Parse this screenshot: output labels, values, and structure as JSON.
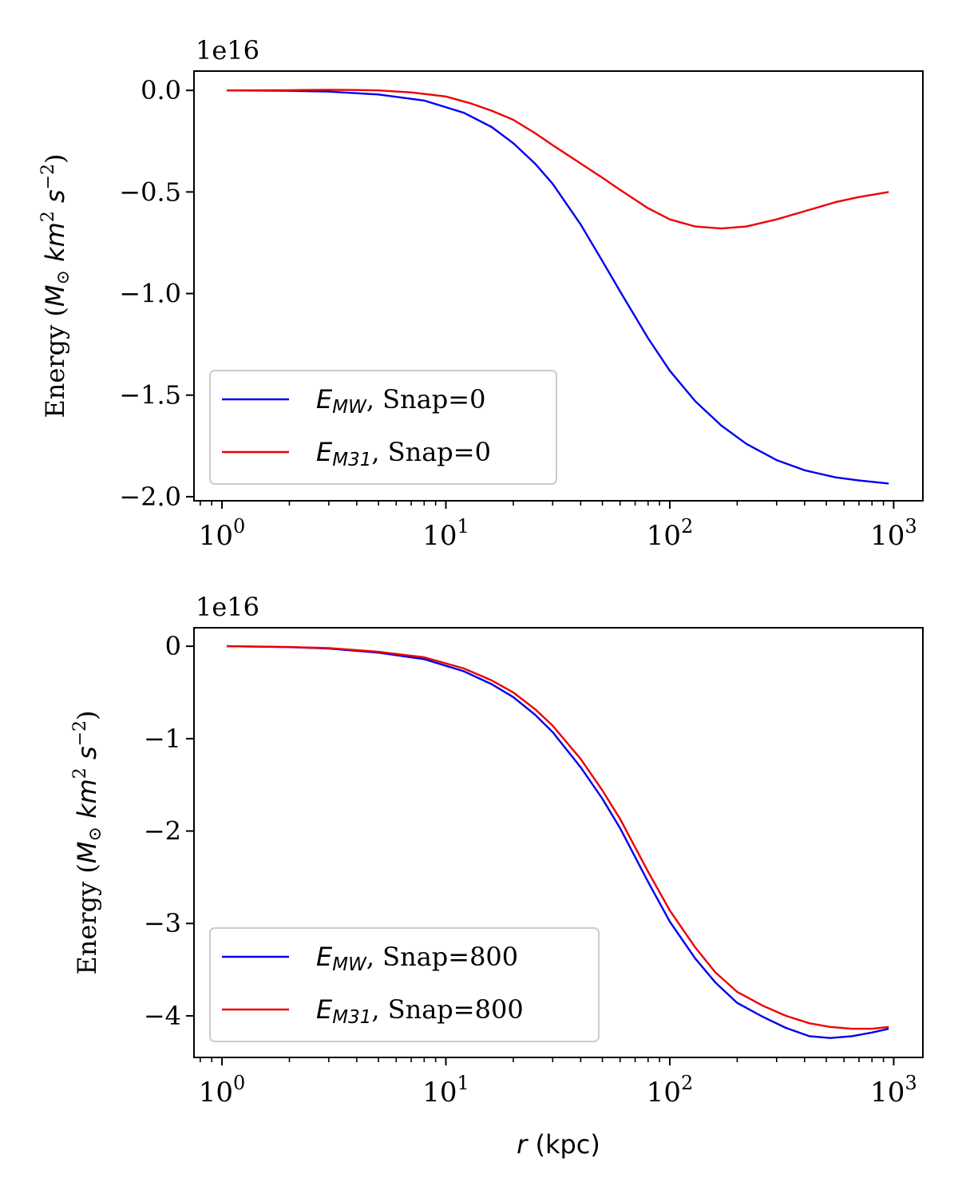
{
  "chart_data": [
    {
      "type": "line",
      "x_scale": "log",
      "xlim": [
        0.75,
        1350
      ],
      "ylim": [
        -2.02,
        0.095
      ],
      "y_multiplier": "1e16",
      "y_ticks": [
        0.0,
        -0.5,
        -1.0,
        -1.5,
        -2.0
      ],
      "y_tick_labels": [
        "0.0",
        "−0.5",
        "−1.0",
        "−1.5",
        "−2.0"
      ],
      "x_ticks": [
        1,
        10,
        100,
        1000
      ],
      "x_tick_labels": [
        {
          "base": "10",
          "exp": "0"
        },
        {
          "base": "10",
          "exp": "1"
        },
        {
          "base": "10",
          "exp": "2"
        },
        {
          "base": "10",
          "exp": "3"
        }
      ],
      "ylabel": {
        "pre": "Energy (",
        "m": "M",
        "sun": "⊙",
        "km": " km",
        "sq": "2",
        "s": " s",
        "exp": "−2",
        "post": ")"
      },
      "xlabel": null,
      "legend_placement": "lower-left",
      "series": [
        {
          "name": {
            "e": "E",
            "sub": "MW",
            "rest": ", Snap=0"
          },
          "color": "#0000ee",
          "x": [
            1.05,
            2,
            3,
            5,
            8,
            12,
            16,
            20,
            25,
            30,
            40,
            50,
            60,
            80,
            100,
            130,
            170,
            220,
            300,
            400,
            550,
            700,
            950
          ],
          "y": [
            0.0,
            -0.002,
            -0.006,
            -0.02,
            -0.05,
            -0.11,
            -0.18,
            -0.26,
            -0.36,
            -0.46,
            -0.66,
            -0.84,
            -0.99,
            -1.22,
            -1.38,
            -1.53,
            -1.65,
            -1.74,
            -1.82,
            -1.87,
            -1.905,
            -1.92,
            -1.935
          ]
        },
        {
          "name": {
            "e": "E",
            "sub": "M31",
            "rest": ", Snap=0"
          },
          "color": "#ee0000",
          "x": [
            1.05,
            2,
            3,
            4,
            5,
            7,
            10,
            13,
            16,
            20,
            25,
            30,
            40,
            50,
            60,
            80,
            100,
            130,
            170,
            220,
            300,
            400,
            550,
            700,
            950
          ],
          "y": [
            0.0,
            0.001,
            0.003,
            0.002,
            0.0,
            -0.01,
            -0.03,
            -0.065,
            -0.1,
            -0.145,
            -0.21,
            -0.27,
            -0.36,
            -0.43,
            -0.49,
            -0.58,
            -0.635,
            -0.67,
            -0.68,
            -0.67,
            -0.635,
            -0.595,
            -0.55,
            -0.525,
            -0.5
          ]
        }
      ]
    },
    {
      "type": "line",
      "x_scale": "log",
      "xlim": [
        0.75,
        1350
      ],
      "ylim": [
        -4.45,
        0.2
      ],
      "y_multiplier": "1e16",
      "y_ticks": [
        0,
        -1,
        -2,
        -3,
        -4
      ],
      "y_tick_labels": [
        "0",
        "−1",
        "−2",
        "−3",
        "−4"
      ],
      "x_ticks": [
        1,
        10,
        100,
        1000
      ],
      "x_tick_labels": [
        {
          "base": "10",
          "exp": "0"
        },
        {
          "base": "10",
          "exp": "1"
        },
        {
          "base": "10",
          "exp": "2"
        },
        {
          "base": "10",
          "exp": "3"
        }
      ],
      "ylabel": {
        "pre": "Energy (",
        "m": "M",
        "sun": "⊙",
        "km": " km",
        "sq": "2",
        "s": " s",
        "exp": "−2",
        "post": ")"
      },
      "xlabel": {
        "r": "r",
        "unit": " (kpc)"
      },
      "legend_placement": "lower-left",
      "series": [
        {
          "name": {
            "e": "E",
            "sub": "MW",
            "rest": ", Snap=800"
          },
          "color": "#0000ee",
          "x": [
            1.05,
            2,
            3,
            5,
            8,
            12,
            16,
            20,
            25,
            30,
            40,
            50,
            60,
            80,
            100,
            130,
            160,
            200,
            260,
            330,
            420,
            520,
            650,
            800,
            950
          ],
          "y": [
            0.0,
            -0.01,
            -0.025,
            -0.07,
            -0.14,
            -0.27,
            -0.41,
            -0.55,
            -0.74,
            -0.93,
            -1.31,
            -1.65,
            -1.97,
            -2.55,
            -2.98,
            -3.38,
            -3.64,
            -3.86,
            -4.01,
            -4.13,
            -4.22,
            -4.24,
            -4.22,
            -4.18,
            -4.14
          ]
        },
        {
          "name": {
            "e": "E",
            "sub": "M31",
            "rest": ", Snap=800"
          },
          "color": "#ee0000",
          "x": [
            1.05,
            2,
            3,
            5,
            8,
            12,
            16,
            20,
            25,
            30,
            40,
            50,
            60,
            80,
            100,
            130,
            160,
            200,
            260,
            330,
            420,
            520,
            650,
            800,
            950
          ],
          "y": [
            0.0,
            -0.008,
            -0.02,
            -0.06,
            -0.12,
            -0.24,
            -0.37,
            -0.5,
            -0.68,
            -0.86,
            -1.22,
            -1.56,
            -1.87,
            -2.44,
            -2.86,
            -3.26,
            -3.53,
            -3.74,
            -3.89,
            -4.0,
            -4.08,
            -4.12,
            -4.14,
            -4.14,
            -4.12
          ]
        }
      ]
    }
  ]
}
